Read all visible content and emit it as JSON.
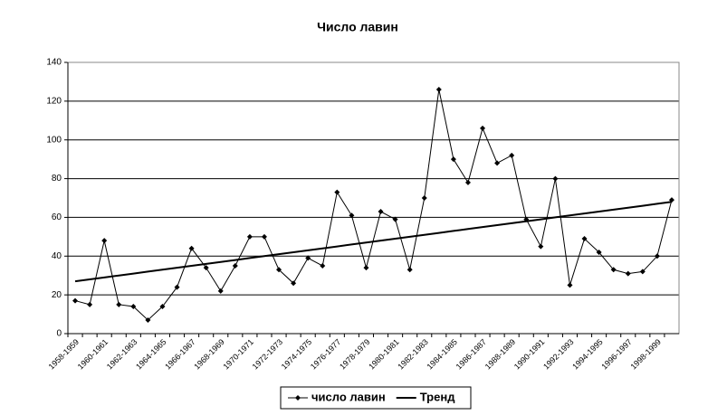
{
  "chart_data": {
    "type": "line",
    "title": "Число лавин",
    "categories": [
      "1958-1959",
      null,
      "1960-1961",
      null,
      "1962-1963",
      null,
      "1964-1965",
      null,
      "1966-1967",
      null,
      "1968-1969",
      null,
      "1970-1971",
      null,
      "1972-1973",
      null,
      "1974-1975",
      null,
      "1976-1977",
      null,
      "1978-1979",
      null,
      "1980-1981",
      null,
      "1982-1983",
      null,
      "1984-1985",
      null,
      "1986-1987",
      null,
      "1988-1989",
      null,
      "1990-1991",
      null,
      "1992-1993",
      null,
      "1994-1995",
      null,
      "1996-1997",
      null,
      "1998-1999",
      null
    ],
    "series": [
      {
        "name": "число лавин",
        "color": "#000000",
        "marker": true,
        "values": [
          17,
          15,
          48,
          15,
          14,
          7,
          14,
          24,
          44,
          34,
          22,
          35,
          50,
          50,
          33,
          26,
          39,
          35,
          73,
          61,
          34,
          63,
          59,
          33,
          70,
          126,
          90,
          78,
          106,
          88,
          92,
          59,
          45,
          80,
          25,
          49,
          42,
          33,
          31,
          32,
          40,
          69
        ]
      },
      {
        "name": "Тренд",
        "color": "#000000",
        "marker": false,
        "values": [
          27,
          28,
          29,
          30,
          31,
          32,
          33,
          34,
          35,
          36,
          37,
          38,
          39,
          40,
          41,
          42,
          43,
          44,
          45,
          46,
          47,
          48,
          49,
          50,
          51,
          52,
          53,
          54,
          55,
          56,
          57,
          58,
          59,
          60,
          61,
          62,
          63,
          64,
          65,
          66,
          67,
          68
        ]
      }
    ],
    "ylim": [
      0,
      140
    ],
    "yticks": [
      0,
      20,
      40,
      60,
      80,
      100,
      120,
      140
    ],
    "grid": true,
    "legend": "bottom"
  }
}
